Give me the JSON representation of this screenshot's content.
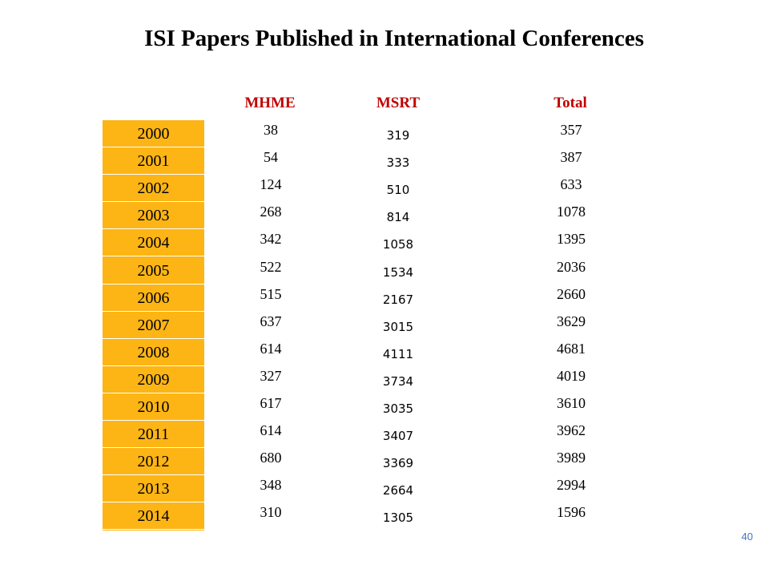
{
  "title": "ISI Papers Published in International Conferences",
  "headers": {
    "col1": "MHME",
    "col2": "MSRT",
    "col3": "Total"
  },
  "colors": {
    "header": "#c00000",
    "year_fill": "#fdb515",
    "page_number": "#4472c4"
  },
  "rows": [
    {
      "year": "2000",
      "mhme": "38",
      "msrt": "319",
      "total": "357"
    },
    {
      "year": "2001",
      "mhme": "54",
      "msrt": "333",
      "total": "387"
    },
    {
      "year": "2002",
      "mhme": "124",
      "msrt": "510",
      "total": "633"
    },
    {
      "year": "2003",
      "mhme": "268",
      "msrt": "814",
      "total": "1078"
    },
    {
      "year": "2004",
      "mhme": "342",
      "msrt": "1058",
      "total": "1395"
    },
    {
      "year": "2005",
      "mhme": "522",
      "msrt": "1534",
      "total": "2036"
    },
    {
      "year": "2006",
      "mhme": "515",
      "msrt": "2167",
      "total": "2660"
    },
    {
      "year": "2007",
      "mhme": "637",
      "msrt": "3015",
      "total": "3629"
    },
    {
      "year": "2008",
      "mhme": "614",
      "msrt": "4111",
      "total": "4681"
    },
    {
      "year": "2009",
      "mhme": "327",
      "msrt": "3734",
      "total": "4019"
    },
    {
      "year": "2010",
      "mhme": "617",
      "msrt": "3035",
      "total": "3610"
    },
    {
      "year": "2011",
      "mhme": "614",
      "msrt": "3407",
      "total": "3962"
    },
    {
      "year": "2012",
      "mhme": "680",
      "msrt": "3369",
      "total": "3989"
    },
    {
      "year": "2013",
      "mhme": "348",
      "msrt": "2664",
      "total": "2994"
    },
    {
      "year": "2014",
      "mhme": "310",
      "msrt": "1305",
      "total": "1596"
    }
  ],
  "page_number": "40"
}
